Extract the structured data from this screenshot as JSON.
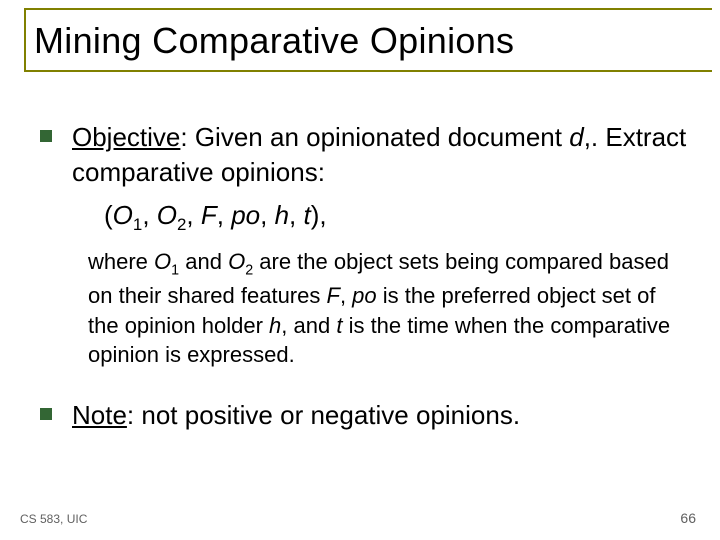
{
  "colors": {
    "title_border": "#808000",
    "title_text": "#000000",
    "bullet": "#336634",
    "body_text": "#000000",
    "footer_text": "#606060",
    "page_number": "#606060",
    "background": "#ffffff"
  },
  "typography": {
    "title_fontsize": 36,
    "body_fontsize": 26,
    "explain_fontsize": 22,
    "footer_fontsize": 12
  },
  "title": "Mining Comparative Opinions",
  "objective": {
    "label": "Objective",
    "line1_rest": ": Given an opinionated document ",
    "doc_var": "d",
    "line1_end": ",. Extract comparative opinions:",
    "tuple_open": "(",
    "tuple_O": "O",
    "tuple_sub1": "1",
    "tuple_sep": ", ",
    "tuple_sub2": "2",
    "tuple_F": "F",
    "tuple_po": "po",
    "tuple_h": "h",
    "tuple_t": "t",
    "tuple_close": "),",
    "explain_pre": "where ",
    "explain_O1": "O",
    "explain_O1_sub": "1",
    "explain_and": " and ",
    "explain_O2": "O",
    "explain_O2_sub": "2",
    "explain_seg1": " are the object sets being compared based on their shared features ",
    "explain_F": "F",
    "explain_seg2": ", ",
    "explain_po": "po",
    "explain_seg3": " is the preferred object set of the opinion holder ",
    "explain_h": "h",
    "explain_seg4": ", and ",
    "explain_t": "t",
    "explain_seg5": " is the time when the comparative opinion is expressed."
  },
  "note": {
    "label": "Note",
    "text": ": not positive or negative opinions."
  },
  "footer": {
    "left": "CS 583, UIC",
    "page": "66"
  }
}
